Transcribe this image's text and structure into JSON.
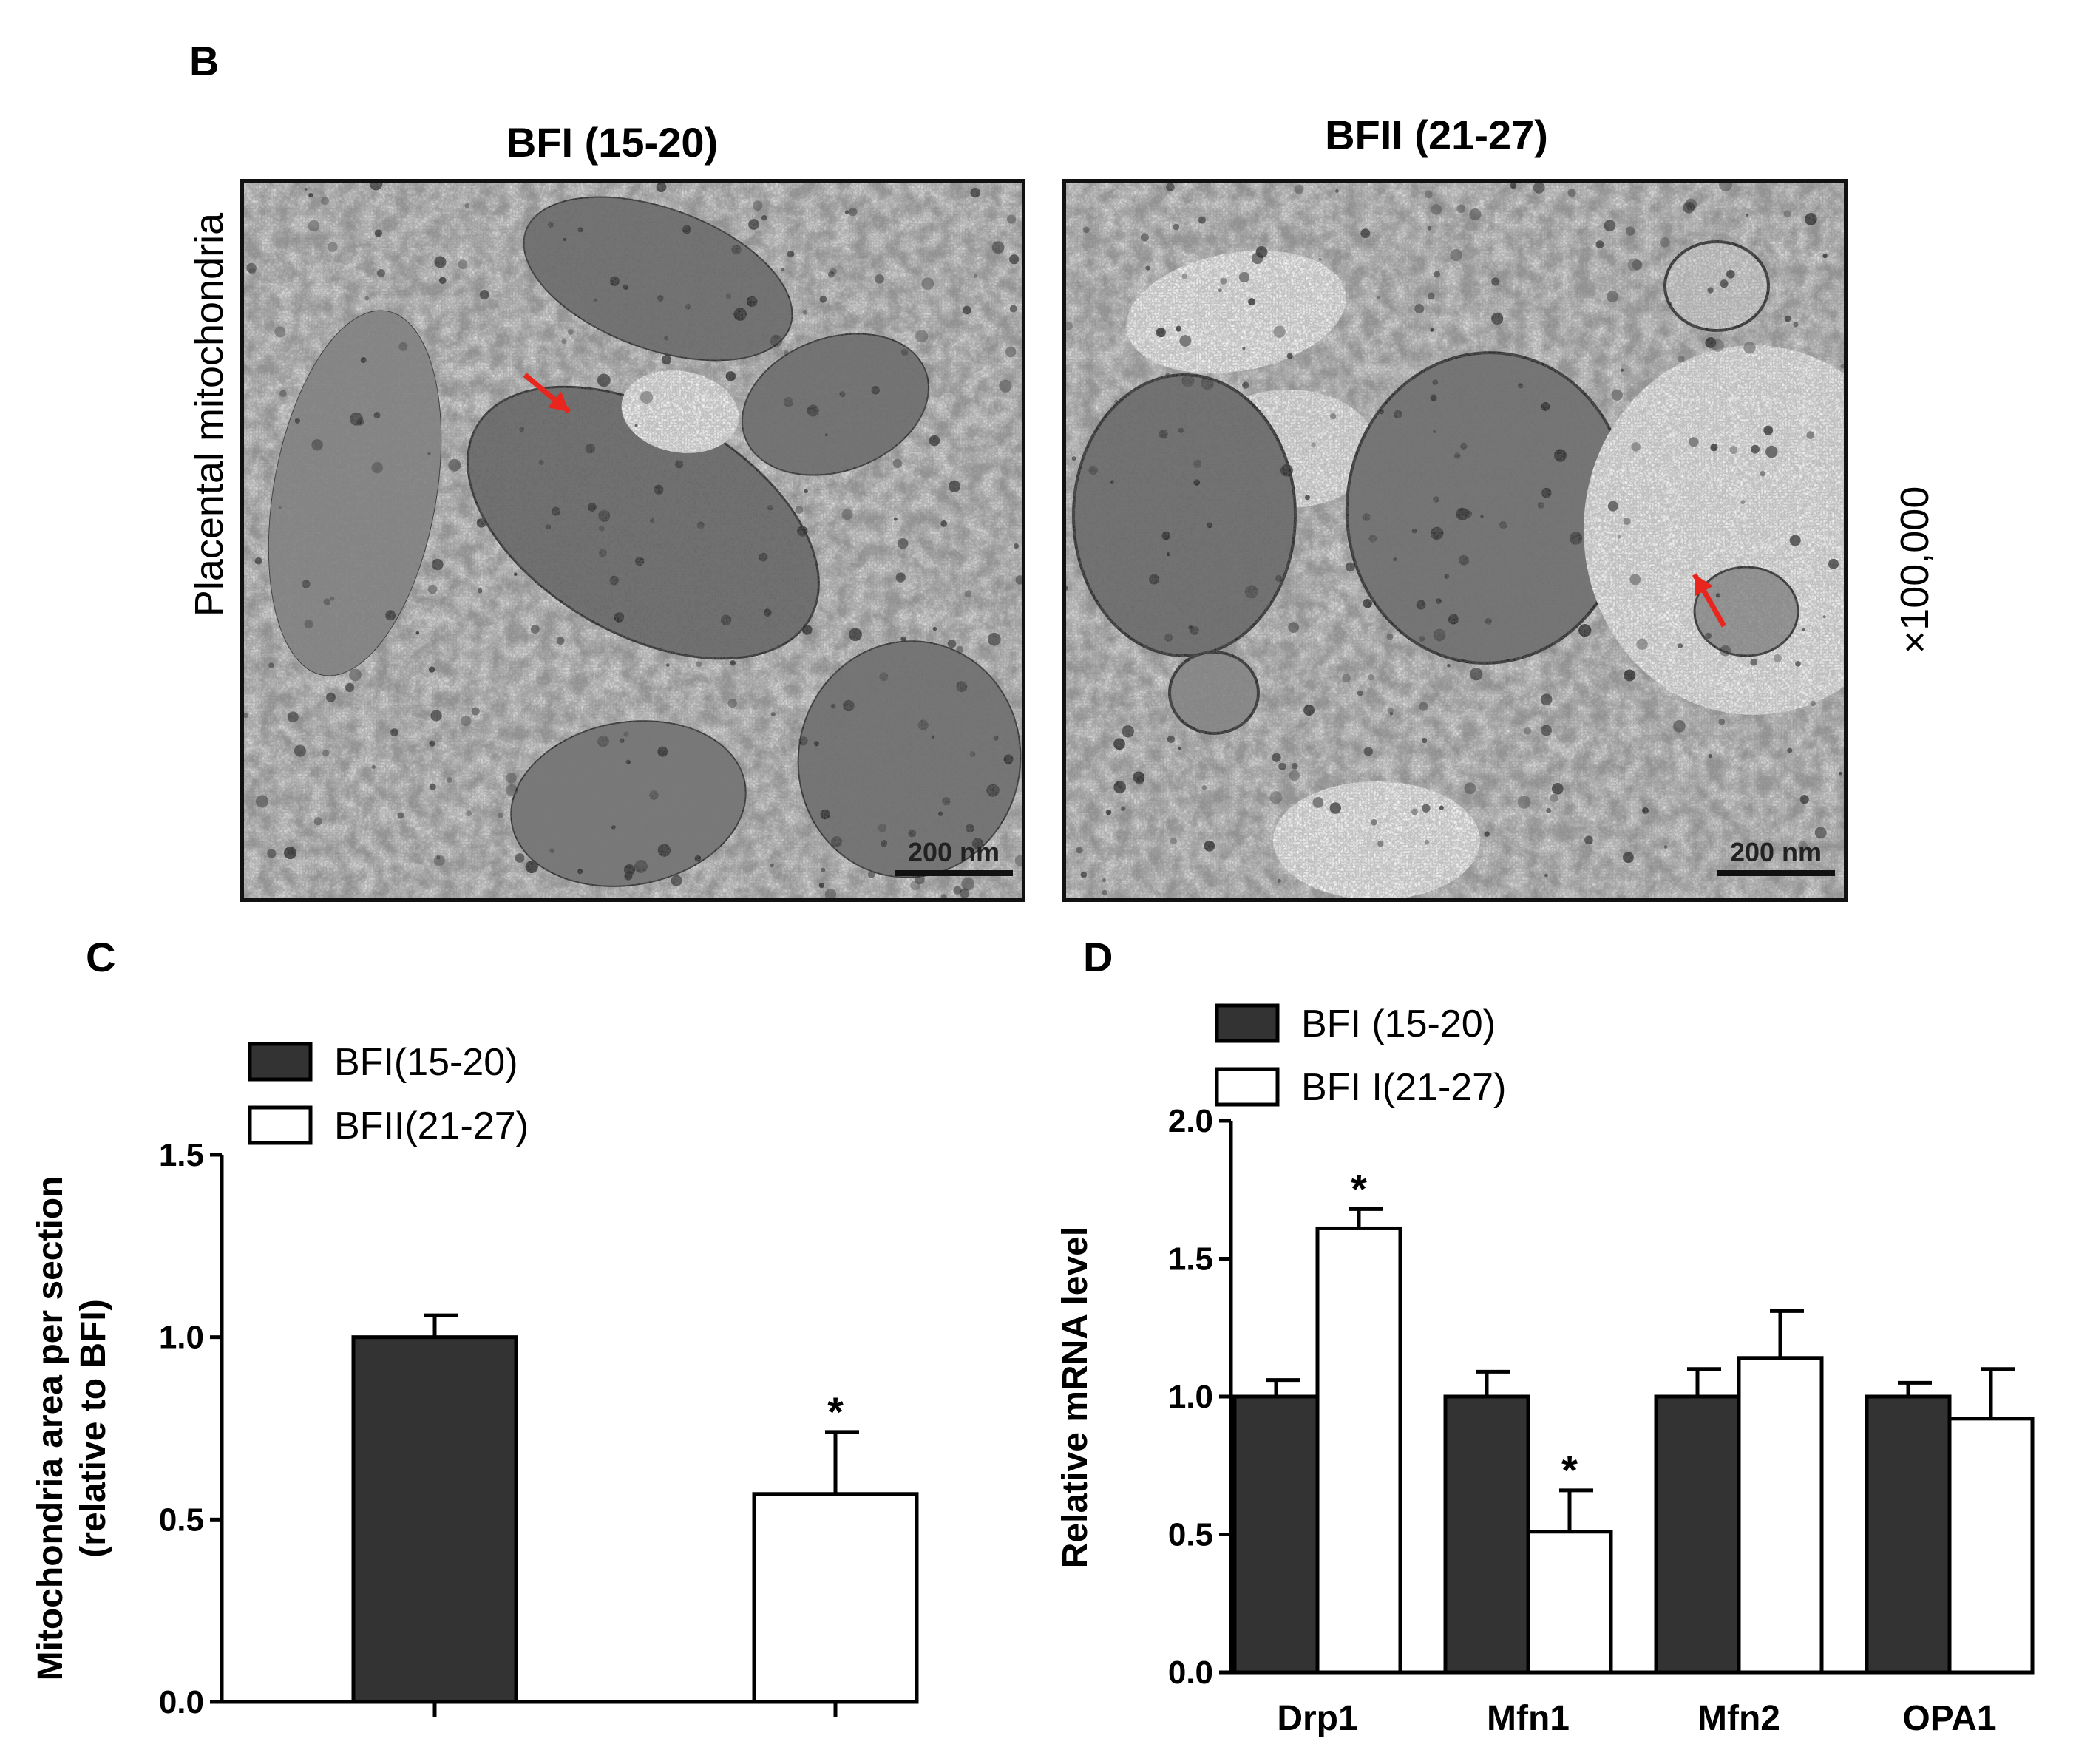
{
  "panels": {
    "B": {
      "letter": "B",
      "images": [
        {
          "title": "BFI (15-20)",
          "scale_bar": "200 nm"
        },
        {
          "title": "BFII (21-27)",
          "scale_bar": "200 nm"
        }
      ],
      "row_label": "Placental mitochondria",
      "magnification": "×100,000",
      "arrow_color": "#e8261e"
    },
    "C": {
      "letter": "C"
    },
    "D": {
      "letter": "D"
    }
  },
  "chart_data": [
    {
      "panel": "C",
      "type": "bar",
      "categories": [
        "",
        ""
      ],
      "series": [
        {
          "name": "BFI(15-20)",
          "values": [
            1.0,
            null
          ],
          "errors": [
            0.06,
            null
          ],
          "fill": "#333333"
        },
        {
          "name": "BFII(21-27)",
          "values": [
            null,
            0.57
          ],
          "errors": [
            null,
            0.17
          ],
          "fill": "#ffffff"
        }
      ],
      "significance": [
        {
          "category_index": 1,
          "series_index": 1,
          "mark": "*"
        }
      ],
      "ylabel_line1": "Mitochondria area per section",
      "ylabel_line2": "(relative to BFI)",
      "ylim": [
        0,
        1.5
      ],
      "yticks": [
        0.0,
        0.5,
        1.0,
        1.5
      ],
      "ytick_labels": [
        "0.0",
        "0.5",
        "1.0",
        "1.5"
      ],
      "legend_position": "top-left"
    },
    {
      "panel": "D",
      "type": "bar",
      "categories": [
        "Drp1",
        "Mfn1",
        "Mfn2",
        "OPA1"
      ],
      "series": [
        {
          "name": "BFI (15-20)",
          "values": [
            1.0,
            1.0,
            1.0,
            1.0
          ],
          "errors": [
            0.06,
            0.09,
            0.1,
            0.05
          ],
          "fill": "#333333"
        },
        {
          "name": "BFI I(21-27)",
          "values": [
            1.61,
            0.51,
            1.14,
            0.92
          ],
          "errors": [
            0.07,
            0.15,
            0.17,
            0.18
          ],
          "fill": "#ffffff"
        }
      ],
      "significance": [
        {
          "category_index": 0,
          "series_index": 1,
          "mark": "*"
        },
        {
          "category_index": 1,
          "series_index": 1,
          "mark": "*"
        }
      ],
      "ylabel": "Relative mRNA level",
      "ylim": [
        0,
        2.0
      ],
      "yticks": [
        0.0,
        0.5,
        1.0,
        1.5,
        2.0
      ],
      "ytick_labels": [
        "0.0",
        "0.5",
        "1.0",
        "1.5",
        "2.0"
      ],
      "legend_position": "top-left"
    }
  ]
}
